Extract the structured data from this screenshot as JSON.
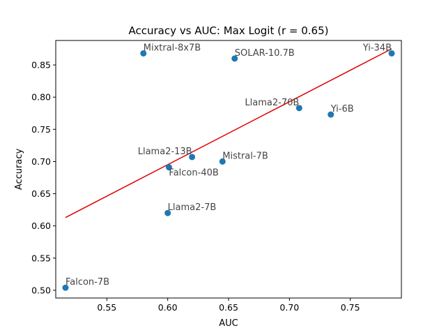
{
  "chart_data": {
    "type": "scatter",
    "title": "Accuracy vs AUC: Max Logit (r = 0.65)",
    "xlabel": "AUC",
    "ylabel": "Accuracy",
    "xlim": [
      0.508,
      0.792
    ],
    "ylim": [
      0.488,
      0.888
    ],
    "xticks": [
      0.55,
      0.6,
      0.65,
      0.7,
      0.75
    ],
    "xtick_labels": [
      "0.55",
      "0.60",
      "0.65",
      "0.70",
      "0.75"
    ],
    "yticks": [
      0.5,
      0.55,
      0.6,
      0.65,
      0.7,
      0.75,
      0.8,
      0.85
    ],
    "ytick_labels": [
      "0.50",
      "0.55",
      "0.60",
      "0.65",
      "0.70",
      "0.75",
      "0.80",
      "0.85"
    ],
    "grid": false,
    "point_color": "#1f77b4",
    "line_color": "#e00000",
    "points": [
      {
        "label": "Falcon-7B",
        "x": 0.516,
        "y": 0.504,
        "anchor": "start",
        "pos": "above"
      },
      {
        "label": "Mixtral-8x7B",
        "x": 0.58,
        "y": 0.868,
        "anchor": "start",
        "pos": "above"
      },
      {
        "label": "SOLAR-10.7B",
        "x": 0.655,
        "y": 0.86,
        "anchor": "start",
        "pos": "above"
      },
      {
        "label": "Llama2-7B",
        "x": 0.6,
        "y": 0.62,
        "anchor": "start",
        "pos": "above"
      },
      {
        "label": "Falcon-40B",
        "x": 0.601,
        "y": 0.691,
        "anchor": "start",
        "pos": "below"
      },
      {
        "label": "Llama2-13B",
        "x": 0.62,
        "y": 0.707,
        "anchor": "end",
        "pos": "above"
      },
      {
        "label": "Mistral-7B",
        "x": 0.645,
        "y": 0.7,
        "anchor": "start",
        "pos": "above"
      },
      {
        "label": "Llama2-70B",
        "x": 0.708,
        "y": 0.783,
        "anchor": "end",
        "pos": "above"
      },
      {
        "label": "Yi-6B",
        "x": 0.734,
        "y": 0.773,
        "anchor": "start",
        "pos": "above"
      },
      {
        "label": "Yi-34B",
        "x": 0.784,
        "y": 0.868,
        "anchor": "end",
        "pos": "above"
      }
    ],
    "fit_line": {
      "x": [
        0.516,
        0.784
      ],
      "y": [
        0.613,
        0.875
      ]
    }
  }
}
